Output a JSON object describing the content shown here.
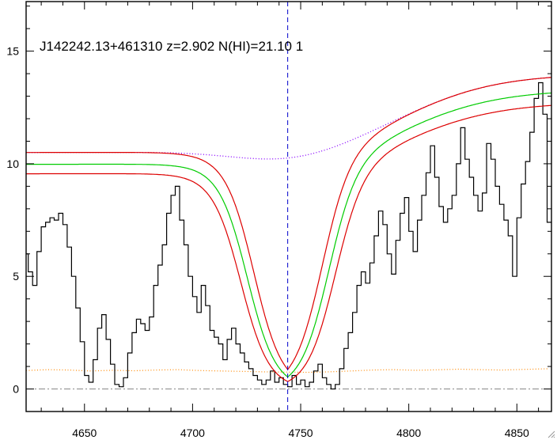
{
  "chart_data": {
    "type": "line",
    "title": "J142242.13+461310 z=2.902 N(HI)=21.10 1",
    "xlabel": "",
    "ylabel": "",
    "xlim": [
      4623,
      4866
    ],
    "ylim": [
      -1,
      17.2
    ],
    "x_ticks": [
      4650,
      4700,
      4750,
      4800,
      4850
    ],
    "y_ticks": [
      0,
      5,
      10,
      15
    ],
    "x_tick_labels": [
      "4650",
      "4700",
      "4750",
      "4800",
      "4850"
    ],
    "y_tick_labels": [
      "0",
      "5",
      "10",
      "15"
    ],
    "grid": false,
    "legend": "none",
    "line_center": 4744,
    "colors": {
      "flux": "#000000",
      "fit": "#00cc00",
      "fit_bounds": "#dd0000",
      "continuum": "#8800ff",
      "error": "#ff8800",
      "zero_line": "#888888",
      "center_line": "#0000cc"
    },
    "profile_model": {
      "continuum_left": 10.5,
      "continuum_right": 14.0,
      "center": 4744,
      "fit_scale": 0.95,
      "upper_scale": 1.0,
      "lower_scale": 0.91,
      "core_halfwidth_fit": 18.5,
      "core_halfwidth_upper": 15.5,
      "core_halfwidth_lower": 21.5,
      "wing_width": 6.5
    },
    "series": [
      {
        "kind": "flux",
        "x": [
          4623,
          4625,
          4627,
          4629,
          4631,
          4633,
          4635,
          4637,
          4639,
          4641,
          4643,
          4645,
          4647,
          4649,
          4651,
          4653,
          4655,
          4657,
          4659,
          4661,
          4663,
          4665,
          4667,
          4669,
          4671,
          4673,
          4675,
          4677,
          4679,
          4681,
          4683,
          4685,
          4687,
          4689,
          4691,
          4693,
          4695,
          4697,
          4699,
          4701,
          4703,
          4705,
          4707,
          4709,
          4711,
          4713,
          4715,
          4717,
          4719,
          4721,
          4723,
          4725,
          4727,
          4729,
          4731,
          4733,
          4735,
          4737,
          4739,
          4741,
          4743,
          4745,
          4747,
          4749,
          4751,
          4753,
          4755,
          4757,
          4759,
          4761,
          4763,
          4765,
          4767,
          4769,
          4771,
          4773,
          4775,
          4777,
          4779,
          4781,
          4783,
          4785,
          4787,
          4789,
          4791,
          4793,
          4795,
          4797,
          4799,
          4801,
          4803,
          4805,
          4807,
          4809,
          4811,
          4813,
          4815,
          4817,
          4819,
          4821,
          4823,
          4825,
          4827,
          4829,
          4831,
          4833,
          4835,
          4837,
          4839,
          4841,
          4843,
          4845,
          4847,
          4849,
          4851,
          4853,
          4855,
          4857,
          4859,
          4861,
          4863,
          4865
        ],
        "values": [
          6.0,
          5.2,
          4.6,
          6.1,
          7.2,
          7.4,
          7.6,
          7.5,
          7.8,
          7.3,
          6.3,
          5.0,
          3.6,
          2.1,
          0.6,
          0.3,
          1.3,
          2.7,
          3.3,
          2.2,
          1.1,
          0.2,
          0.1,
          0.5,
          1.6,
          2.5,
          3.1,
          2.9,
          2.6,
          3.2,
          4.6,
          5.5,
          6.4,
          7.8,
          8.6,
          9.0,
          7.5,
          6.4,
          5.0,
          4.1,
          3.4,
          4.6,
          3.7,
          2.6,
          2.3,
          2.0,
          1.3,
          2.2,
          2.7,
          2.0,
          1.6,
          1.2,
          0.9,
          0.6,
          0.4,
          0.2,
          0.4,
          0.8,
          0.3,
          0.5,
          0.2,
          0.1,
          0.6,
          0.2,
          0.4,
          0.1,
          0.3,
          0.8,
          1.1,
          0.5,
          0.2,
          0.0,
          0.2,
          0.9,
          1.8,
          2.5,
          3.4,
          4.6,
          5.2,
          4.7,
          5.6,
          6.8,
          7.9,
          7.3,
          6.0,
          5.1,
          6.6,
          7.8,
          8.5,
          7.0,
          6.1,
          7.5,
          8.6,
          9.6,
          10.8,
          9.4,
          8.1,
          7.4,
          8.0,
          8.6,
          10.0,
          11.6,
          10.2,
          9.4,
          8.6,
          7.9,
          8.7,
          10.9,
          10.2,
          9.0,
          8.2,
          7.5,
          6.8,
          5.0,
          7.6,
          9.1,
          10.1,
          11.4,
          12.9,
          13.6,
          12.2,
          7.4
        ]
      },
      {
        "kind": "error",
        "x": [
          4623,
          4633,
          4643,
          4653,
          4663,
          4673,
          4683,
          4693,
          4703,
          4713,
          4723,
          4733,
          4743,
          4753,
          4763,
          4773,
          4783,
          4793,
          4803,
          4813,
          4823,
          4833,
          4843,
          4853,
          4865
        ],
        "values": [
          0.82,
          0.86,
          0.84,
          0.8,
          0.83,
          0.81,
          0.84,
          0.86,
          0.82,
          0.8,
          0.78,
          0.76,
          0.75,
          0.74,
          0.76,
          0.8,
          0.84,
          0.86,
          0.83,
          0.85,
          0.88,
          0.86,
          0.84,
          0.87,
          0.9
        ]
      }
    ]
  }
}
